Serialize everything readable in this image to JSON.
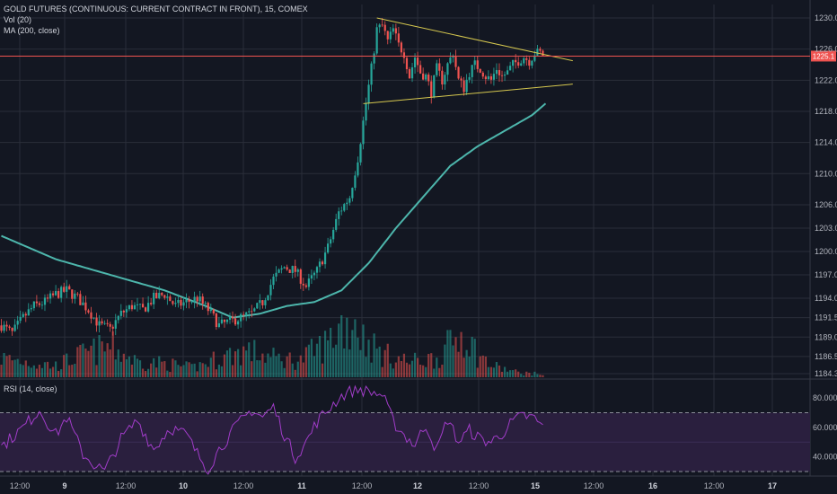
{
  "legend": {
    "title": "GOLD FUTURES (CONTINUOUS: CURRENT CONTRACT IN FRONT), 15, COMEX",
    "volume": "Vol (20)",
    "ma": "MA (200, close)",
    "rsi": "RSI (14, close)"
  },
  "colors": {
    "background": "#131722",
    "grid": "#2a2e39",
    "up": "#26a69a",
    "down": "#ef5350",
    "ma": "#4db6ac",
    "triangle": "#d6c84f",
    "price_line": "#ef5350",
    "rsi": "#a13cc9",
    "rsi_band": "#2a1f3e"
  },
  "price_axis": {
    "ticks": [
      "1230.0",
      "1226.0",
      "1222.0",
      "1218.0",
      "1214.0",
      "1210.0",
      "1206.0",
      "1203.0",
      "1200.0",
      "1197.0",
      "1194.0",
      "1191.5",
      "1189.0",
      "1186.5",
      "1184.3"
    ],
    "current_price": "1225.1"
  },
  "rsi_axis": {
    "ticks": [
      "80.0000",
      "60.0000",
      "40.0000"
    ]
  },
  "time_axis": {
    "ticks": [
      {
        "label": "12:00",
        "bold": false
      },
      {
        "label": "9",
        "bold": true
      },
      {
        "label": "12:00",
        "bold": false
      },
      {
        "label": "10",
        "bold": true
      },
      {
        "label": "12:00",
        "bold": false
      },
      {
        "label": "11",
        "bold": true
      },
      {
        "label": "12:00",
        "bold": false
      },
      {
        "label": "12",
        "bold": true
      },
      {
        "label": "12:00",
        "bold": false
      },
      {
        "label": "15",
        "bold": true
      },
      {
        "label": "12:00",
        "bold": false
      },
      {
        "label": "16",
        "bold": true
      },
      {
        "label": "12:00",
        "bold": false
      },
      {
        "label": "17",
        "bold": true
      }
    ]
  },
  "chart_data": {
    "type": "candlestick",
    "title": "GOLD FUTURES (CONTINUOUS: CURRENT CONTRACT IN FRONT), 15, COMEX",
    "ylim": [
      1184.3,
      1230.0
    ],
    "price_anchors": [
      [
        0,
        1190.5
      ],
      [
        4,
        1189.5
      ],
      [
        8,
        1191.5
      ],
      [
        12,
        1193.0
      ],
      [
        16,
        1193.5
      ],
      [
        20,
        1194.5
      ],
      [
        24,
        1195.0
      ],
      [
        28,
        1194.0
      ],
      [
        32,
        1192.5
      ],
      [
        36,
        1190.5
      ],
      [
        40,
        1190.0
      ],
      [
        44,
        1192.0
      ],
      [
        48,
        1193.0
      ],
      [
        52,
        1192.5
      ],
      [
        56,
        1194.0
      ],
      [
        60,
        1194.5
      ],
      [
        64,
        1193.0
      ],
      [
        68,
        1193.5
      ],
      [
        72,
        1194.0
      ],
      [
        76,
        1192.5
      ],
      [
        80,
        1190.5
      ],
      [
        84,
        1191.0
      ],
      [
        88,
        1191.5
      ],
      [
        92,
        1192.0
      ],
      [
        96,
        1193.5
      ],
      [
        100,
        1196.5
      ],
      [
        104,
        1198.0
      ],
      [
        108,
        1197.5
      ],
      [
        112,
        1195.5
      ],
      [
        116,
        1197.5
      ],
      [
        120,
        1200.5
      ],
      [
        124,
        1205.0
      ],
      [
        128,
        1207.0
      ],
      [
        131,
        1212.0
      ],
      [
        134,
        1219.0
      ],
      [
        136,
        1223.5
      ],
      [
        138,
        1228.5
      ],
      [
        140,
        1229.0
      ],
      [
        142,
        1227.0
      ],
      [
        144,
        1228.5
      ],
      [
        146,
        1226.5
      ],
      [
        148,
        1225.5
      ],
      [
        150,
        1222.5
      ],
      [
        152,
        1225.0
      ],
      [
        154,
        1223.0
      ],
      [
        156,
        1222.5
      ],
      [
        158,
        1220.5
      ],
      [
        160,
        1223.5
      ],
      [
        162,
        1222.0
      ],
      [
        164,
        1224.0
      ],
      [
        166,
        1225.5
      ],
      [
        168,
        1222.0
      ],
      [
        170,
        1221.0
      ],
      [
        172,
        1223.0
      ],
      [
        174,
        1224.0
      ],
      [
        176,
        1223.5
      ],
      [
        178,
        1222.5
      ],
      [
        180,
        1222.0
      ],
      [
        182,
        1223.5
      ],
      [
        184,
        1222.5
      ],
      [
        186,
        1223.0
      ],
      [
        188,
        1224.0
      ],
      [
        190,
        1224.5
      ],
      [
        192,
        1225.0
      ],
      [
        194,
        1224.5
      ],
      [
        196,
        1225.5
      ],
      [
        198,
        1225.5
      ],
      [
        199,
        1225.1
      ]
    ],
    "ma200_anchors": [
      [
        0,
        1202.0
      ],
      [
        20,
        1199.0
      ],
      [
        40,
        1197.0
      ],
      [
        60,
        1195.0
      ],
      [
        75,
        1193.0
      ],
      [
        85,
        1191.5
      ],
      [
        95,
        1192.0
      ],
      [
        105,
        1193.0
      ],
      [
        115,
        1193.5
      ],
      [
        125,
        1195.0
      ],
      [
        135,
        1198.5
      ],
      [
        145,
        1203.0
      ],
      [
        155,
        1207.0
      ],
      [
        165,
        1211.0
      ],
      [
        175,
        1213.5
      ],
      [
        185,
        1215.5
      ],
      [
        195,
        1217.5
      ],
      [
        200,
        1219.0
      ]
    ],
    "triangle_upper": [
      [
        138,
        1230.0
      ],
      [
        210,
        1224.5
      ]
    ],
    "triangle_lower": [
      [
        133,
        1219.0
      ],
      [
        210,
        1221.5
      ]
    ],
    "rsi_anchors": [
      [
        0,
        47
      ],
      [
        8,
        60
      ],
      [
        14,
        72
      ],
      [
        20,
        55
      ],
      [
        24,
        67
      ],
      [
        30,
        42
      ],
      [
        34,
        35
      ],
      [
        38,
        30
      ],
      [
        44,
        52
      ],
      [
        50,
        65
      ],
      [
        56,
        45
      ],
      [
        62,
        60
      ],
      [
        68,
        55
      ],
      [
        72,
        42
      ],
      [
        76,
        32
      ],
      [
        80,
        45
      ],
      [
        86,
        60
      ],
      [
        92,
        72
      ],
      [
        96,
        67
      ],
      [
        100,
        74
      ],
      [
        104,
        55
      ],
      [
        108,
        40
      ],
      [
        112,
        50
      ],
      [
        116,
        64
      ],
      [
        120,
        72
      ],
      [
        124,
        80
      ],
      [
        128,
        85
      ],
      [
        132,
        86
      ],
      [
        136,
        84
      ],
      [
        140,
        82
      ],
      [
        144,
        64
      ],
      [
        148,
        55
      ],
      [
        152,
        48
      ],
      [
        156,
        62
      ],
      [
        160,
        44
      ],
      [
        164,
        66
      ],
      [
        168,
        50
      ],
      [
        172,
        58
      ],
      [
        176,
        52
      ],
      [
        180,
        50
      ],
      [
        184,
        56
      ],
      [
        188,
        64
      ],
      [
        192,
        68
      ],
      [
        196,
        66
      ],
      [
        199,
        60
      ]
    ],
    "rsi_range": [
      30,
      70
    ],
    "volume_anchors": [
      [
        0,
        25
      ],
      [
        10,
        20
      ],
      [
        20,
        15
      ],
      [
        30,
        30
      ],
      [
        40,
        40
      ],
      [
        50,
        20
      ],
      [
        60,
        18
      ],
      [
        70,
        12
      ],
      [
        80,
        25
      ],
      [
        90,
        35
      ],
      [
        100,
        25
      ],
      [
        110,
        22
      ],
      [
        115,
        35
      ],
      [
        120,
        45
      ],
      [
        125,
        70
      ],
      [
        128,
        65
      ],
      [
        130,
        80
      ],
      [
        132,
        55
      ],
      [
        135,
        45
      ],
      [
        140,
        30
      ],
      [
        150,
        20
      ],
      [
        160,
        25
      ],
      [
        170,
        60
      ],
      [
        175,
        30
      ],
      [
        180,
        15
      ],
      [
        190,
        6
      ],
      [
        199,
        4
      ]
    ],
    "current_price": 1225.1
  }
}
